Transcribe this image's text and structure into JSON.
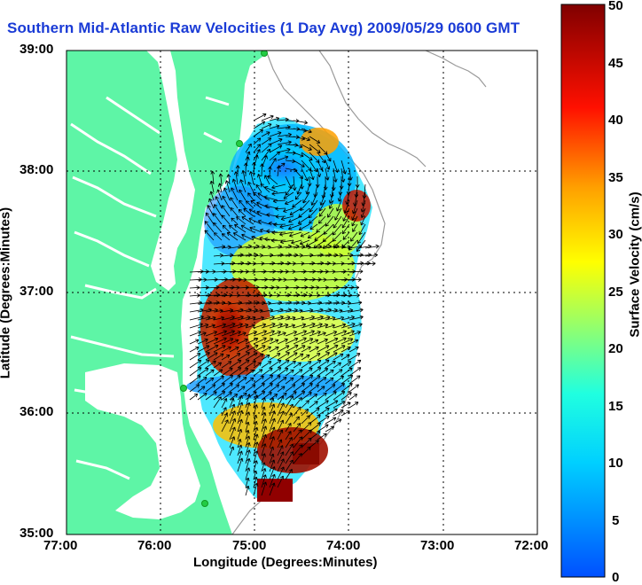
{
  "title": "Southern Mid-Atlantic Raw Velocities (1 Day Avg) 2009/05/29 0600 GMT",
  "xlabel": "Longitude (Degrees:Minutes)",
  "ylabel": "Latitude (Degrees:Minutes)",
  "colorbar_label": "Surface Velocity (cm/s)",
  "x_ticks": [
    "77:00",
    "76:00",
    "75:00",
    "74:00",
    "73:00",
    "72:00"
  ],
  "y_ticks": [
    "39:00",
    "38:00",
    "37:00",
    "36:00",
    "35:00"
  ],
  "colorbar_ticks": [
    "50",
    "45",
    "40",
    "35",
    "30",
    "25",
    "20",
    "15",
    "10",
    "5",
    "0"
  ],
  "colors": {
    "land": "#5ef5a6",
    "title": "#1a3bd6",
    "arrows": "#000000",
    "bathymetry": "#9a9a9a",
    "stations": "#22cc44"
  },
  "map": {
    "lon_range": [
      -77,
      -72
    ],
    "lat_range": [
      35,
      39
    ],
    "colorbar_range": [
      0,
      50
    ],
    "colorscale": "jet",
    "grid": "dotted"
  }
}
